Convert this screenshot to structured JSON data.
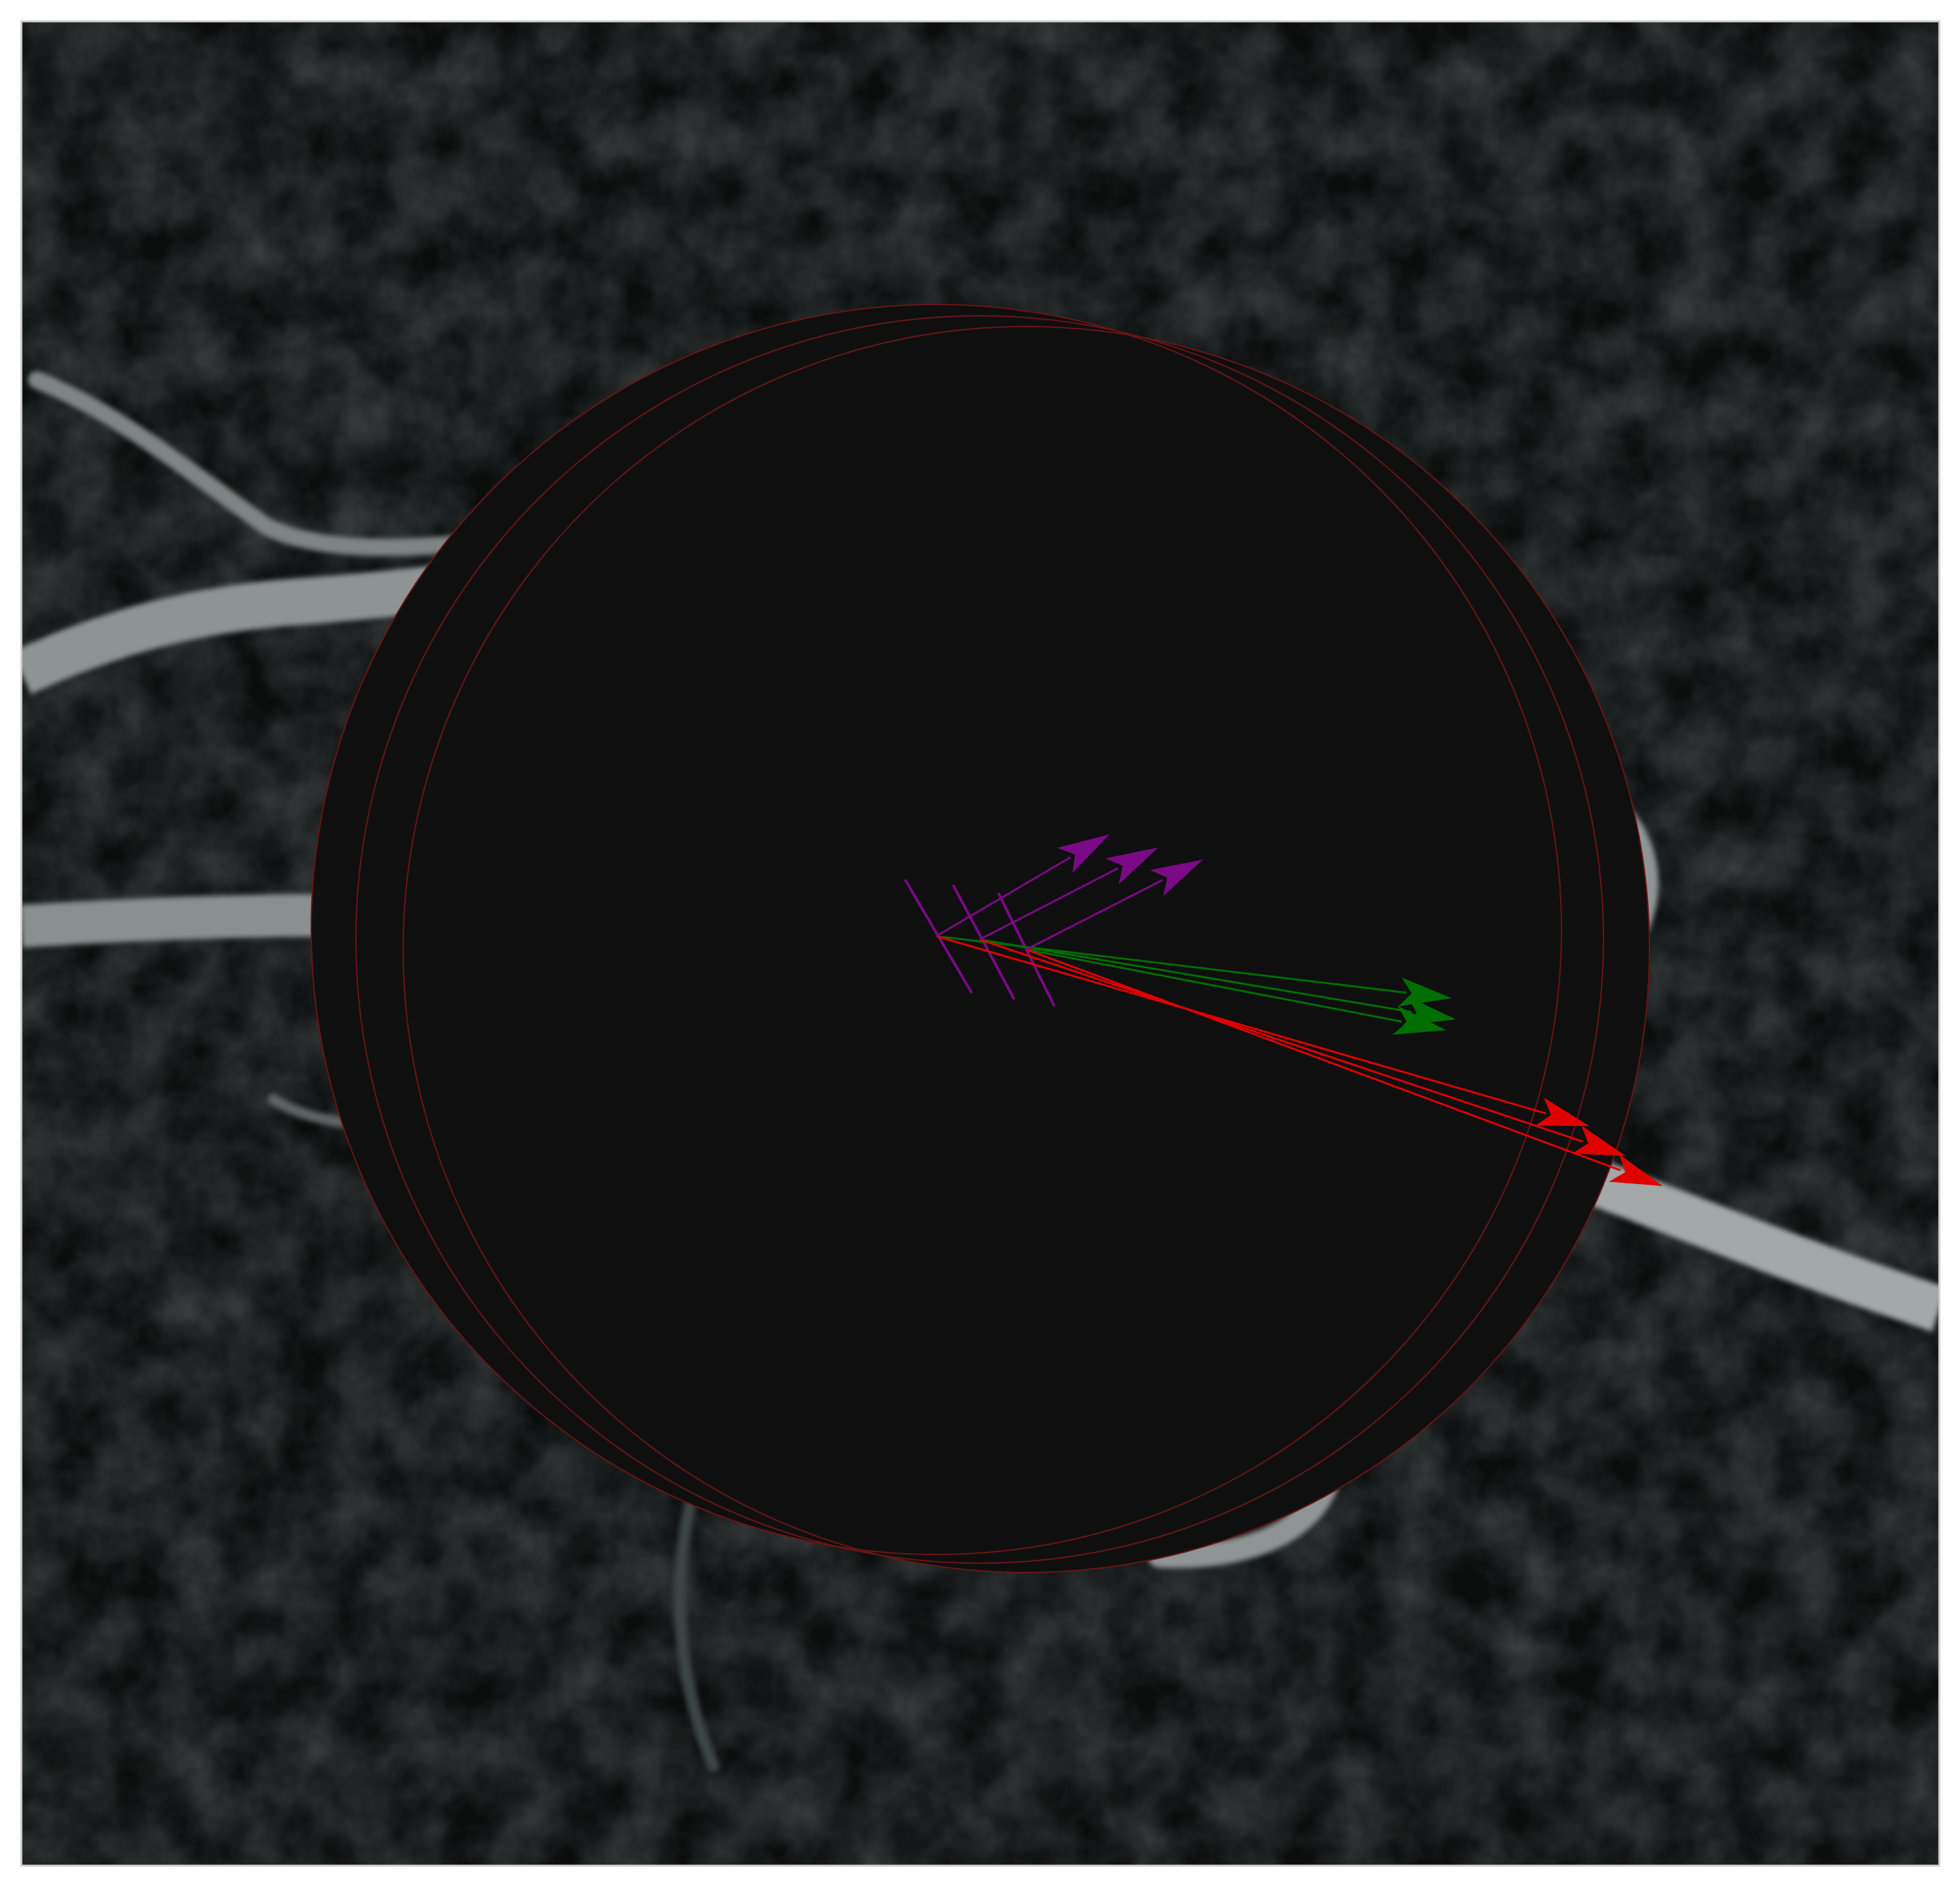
{
  "figure": {
    "description_hidden": "",
    "colors": {
      "page_background": "#ffffff",
      "frame_stroke": "#cfcfcf",
      "background_tissue": "#0b0d0d",
      "vessel": "#9aa0a0",
      "vessel_bright": "#b9bdbd",
      "masked_region": "#0f0f10",
      "circle_outline": "#6a1515",
      "red_arrow": "#e00000",
      "green_arrow": "#006e00",
      "purple_arrow": "#7a0a85"
    },
    "circle_count": 3,
    "arrow_groups": [
      {
        "color_name": "red",
        "count": 3
      },
      {
        "color_name": "green",
        "count": 3
      },
      {
        "color_name": "purple",
        "count": 3
      }
    ],
    "icons": {
      "circle": "circle-outline-icon",
      "arrow": "arrow-icon"
    }
  }
}
